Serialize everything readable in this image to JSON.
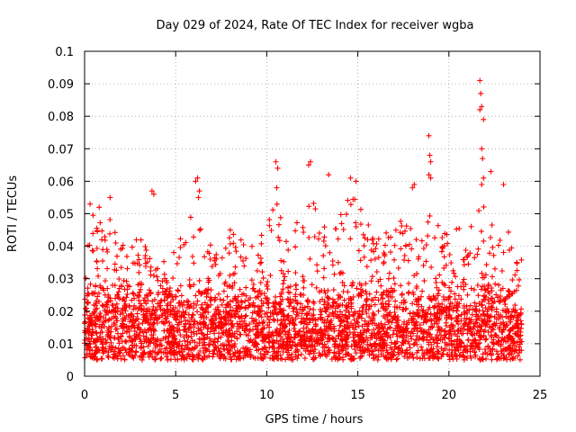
{
  "chart_data": {
    "type": "scatter",
    "title": "Day 029 of 2024, Rate Of TEC Index for receiver wgba",
    "xlabel": "GPS time / hours",
    "ylabel": "ROTI / TECUs",
    "xlim": [
      0,
      25
    ],
    "ylim": [
      0,
      0.1
    ],
    "xticks": [
      0,
      5,
      10,
      15,
      20,
      25
    ],
    "xtick_labels": [
      "0",
      "5",
      "10",
      "15",
      "20",
      "25"
    ],
    "yticks": [
      0,
      0.01,
      0.02,
      0.03,
      0.04,
      0.05,
      0.06,
      0.07,
      0.08,
      0.09,
      0.1
    ],
    "ytick_labels": [
      "0",
      "0.01",
      "0.02",
      "0.03",
      "0.04",
      "0.05",
      "0.06",
      "0.07",
      "0.08",
      "0.09",
      "0.1"
    ],
    "grid": true,
    "marker": "+",
    "color": "#ff0000",
    "series": [
      {
        "name": "ROTI",
        "note": "dense cloud of many thousands of points between 0 and 24 h, mostly 0.005-0.035 TECU; representative envelope",
        "x_range": [
          0,
          24
        ],
        "typical_min": 0.005,
        "typical_max": 0.03,
        "envelope": [
          [
            0,
            0.036
          ],
          [
            0.5,
            0.052
          ],
          [
            1,
            0.048
          ],
          [
            1.5,
            0.05
          ],
          [
            2,
            0.04
          ],
          [
            2.5,
            0.042
          ],
          [
            3,
            0.045
          ],
          [
            3.5,
            0.038
          ],
          [
            4,
            0.034
          ],
          [
            4.5,
            0.038
          ],
          [
            5,
            0.044
          ],
          [
            5.5,
            0.046
          ],
          [
            6,
            0.052
          ],
          [
            6.5,
            0.044
          ],
          [
            7,
            0.04
          ],
          [
            7.5,
            0.036
          ],
          [
            8,
            0.046
          ],
          [
            8.5,
            0.042
          ],
          [
            9,
            0.044
          ],
          [
            9.5,
            0.04
          ],
          [
            10,
            0.048
          ],
          [
            10.5,
            0.056
          ],
          [
            11,
            0.046
          ],
          [
            11.5,
            0.05
          ],
          [
            12,
            0.054
          ],
          [
            12.5,
            0.056
          ],
          [
            13,
            0.056
          ],
          [
            13.5,
            0.052
          ],
          [
            14,
            0.054
          ],
          [
            14.5,
            0.056
          ],
          [
            15,
            0.055
          ],
          [
            15.5,
            0.048
          ],
          [
            16,
            0.046
          ],
          [
            16.5,
            0.046
          ],
          [
            17,
            0.044
          ],
          [
            17.5,
            0.05
          ],
          [
            18,
            0.052
          ],
          [
            18.5,
            0.046
          ],
          [
            19,
            0.05
          ],
          [
            19.5,
            0.046
          ],
          [
            20,
            0.044
          ],
          [
            20.5,
            0.046
          ],
          [
            21,
            0.044
          ],
          [
            21.5,
            0.05
          ],
          [
            22,
            0.056
          ],
          [
            22.5,
            0.05
          ],
          [
            23,
            0.048
          ],
          [
            23.5,
            0.042
          ],
          [
            24,
            0.04
          ]
        ],
        "peaks": [
          [
            0.3,
            0.053
          ],
          [
            0.8,
            0.052
          ],
          [
            1.4,
            0.055
          ],
          [
            3.7,
            0.057
          ],
          [
            3.8,
            0.056
          ],
          [
            6.1,
            0.06
          ],
          [
            6.2,
            0.061
          ],
          [
            6.3,
            0.057
          ],
          [
            6.25,
            0.055
          ],
          [
            10.5,
            0.066
          ],
          [
            10.6,
            0.064
          ],
          [
            10.55,
            0.058
          ],
          [
            12.3,
            0.065
          ],
          [
            12.4,
            0.066
          ],
          [
            13.4,
            0.062
          ],
          [
            14.6,
            0.061
          ],
          [
            14.9,
            0.06
          ],
          [
            18,
            0.058
          ],
          [
            18.1,
            0.059
          ],
          [
            18.9,
            0.074
          ],
          [
            18.95,
            0.068
          ],
          [
            19.0,
            0.066
          ],
          [
            18.9,
            0.062
          ],
          [
            19.0,
            0.061
          ],
          [
            21.7,
            0.091
          ],
          [
            21.75,
            0.087
          ],
          [
            21.8,
            0.083
          ],
          [
            21.7,
            0.082
          ],
          [
            21.9,
            0.079
          ],
          [
            21.8,
            0.07
          ],
          [
            21.85,
            0.067
          ],
          [
            21.9,
            0.061
          ],
          [
            21.8,
            0.059
          ],
          [
            22.3,
            0.063
          ],
          [
            23.0,
            0.059
          ]
        ]
      }
    ]
  }
}
